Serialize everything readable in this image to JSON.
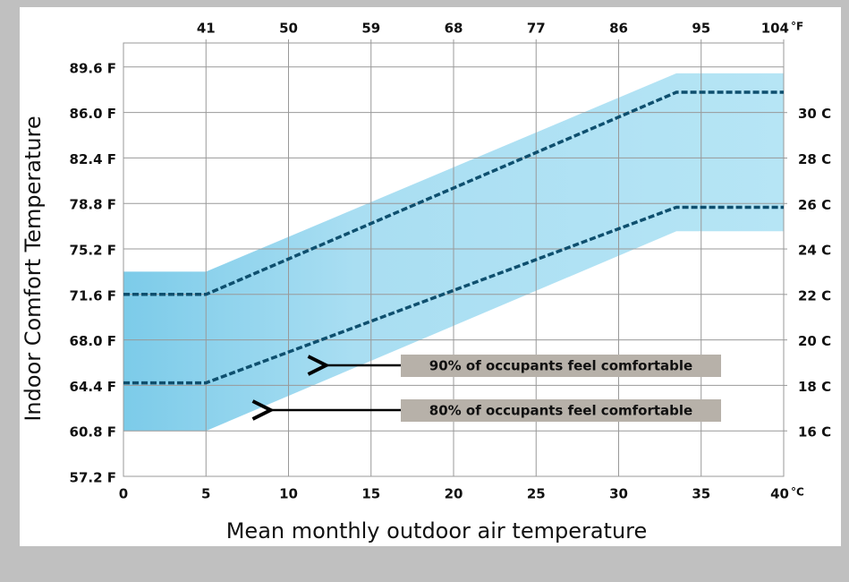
{
  "chart_data": {
    "type": "line",
    "ylabel": "Indoor Comfort Temperature",
    "xlabel": "Mean monthly outdoor air temperature",
    "x": [
      0,
      5,
      33.5,
      40
    ],
    "xlim": [
      0,
      40
    ],
    "xticks": [
      0,
      5,
      10,
      15,
      20,
      25,
      30,
      35,
      40
    ],
    "x_unit": "°C",
    "x2lim": [
      32,
      104
    ],
    "x2ticks": [
      41,
      50,
      59,
      68,
      77,
      86,
      95,
      104
    ],
    "x2_unit": "°F",
    "ylim": [
      57.2,
      91.5
    ],
    "yticks": [
      {
        "value": 57.2,
        "label": "57.2 F"
      },
      {
        "value": 60.8,
        "label": "60.8 F"
      },
      {
        "value": 64.4,
        "label": "64.4 F"
      },
      {
        "value": 68.0,
        "label": "68.0 F"
      },
      {
        "value": 71.6,
        "label": "71.6 F"
      },
      {
        "value": 75.2,
        "label": "75.2 F"
      },
      {
        "value": 78.8,
        "label": "78.8 F"
      },
      {
        "value": 82.4,
        "label": "82.4 F"
      },
      {
        "value": 86.0,
        "label": "86.0 F"
      },
      {
        "value": 89.6,
        "label": "89.6 F"
      }
    ],
    "y2lim": [
      14,
      33.06
    ],
    "y2ticks": [
      {
        "value": 16,
        "label": "16 C"
      },
      {
        "value": 18,
        "label": "18 C"
      },
      {
        "value": 20,
        "label": "20 C"
      },
      {
        "value": 22,
        "label": "22 C"
      },
      {
        "value": 24,
        "label": "24 C"
      },
      {
        "value": 26,
        "label": "26 C"
      },
      {
        "value": 28,
        "label": "28 C"
      },
      {
        "value": 30,
        "label": "30 C"
      }
    ],
    "grid": true,
    "band": {
      "color": "#a9def2",
      "values": [
        73.4,
        73.4,
        89.1,
        89.1
      ],
      "lower": [
        60.8,
        60.8,
        76.6,
        76.6
      ]
    },
    "series": [
      {
        "color": "#0e4f6e",
        "values": [
          71.6,
          71.6,
          87.6,
          87.6
        ]
      },
      {
        "color": "#0e4f6e",
        "values": [
          64.6,
          64.6,
          78.5,
          78.5
        ]
      }
    ],
    "annotations": [
      "90%  of occupants feel comfortable",
      "80%  of occupants feel comfortable"
    ]
  }
}
